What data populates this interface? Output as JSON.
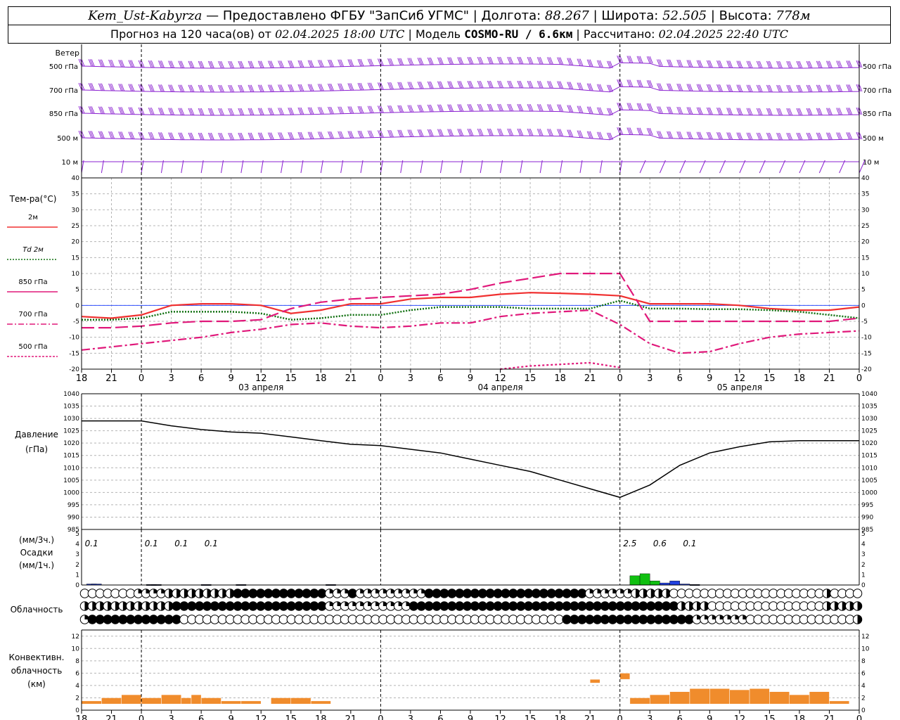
{
  "header": {
    "station": "Kem_Ust-Kabyrza",
    "provider": "— Предоставлено ФГБУ \"ЗапСиб УГМС\"",
    "lon_label": "Долгота:",
    "lon": "88.267",
    "lat_label": "Широта:",
    "lat": "52.505",
    "alt_label": "Высота:",
    "alt": "778м",
    "forecast_label": "Прогноз на 120 часа(ов) от",
    "forecast_time": "02.04.2025 18:00 UTC",
    "model_label": "Модель",
    "model": "COSMO-RU / 6.6км",
    "calc_label": "Рассчитано:",
    "calc_time": "02.04.2025 22:40 UTC"
  },
  "labels": {
    "wind": "Ветер",
    "wind_levels": [
      "500 гПа",
      "700 гПа",
      "850 гПа",
      "500 м",
      "10  м"
    ],
    "temp_title": "Тем-ра(°С)",
    "temp_legend": [
      "2м",
      "Td  2м",
      "850 гПа",
      "700 гПа",
      "500 гПа"
    ],
    "pressure_title": "Давление",
    "pressure_unit": "(гПа)",
    "precip_unit_top": "(мм/3ч.)",
    "precip_title": "Осадки",
    "precip_unit_bottom": "(мм/1ч.)",
    "cloud_title": "Облачность",
    "conv_title_1": "Конвективн.",
    "conv_title_2": "облачность",
    "conv_unit": "(км)"
  },
  "colors": {
    "t2m": "#f03030",
    "td2m": "#107010",
    "t850": "#e0187a",
    "t700": "#e0187a",
    "t500": "#e0187a",
    "wind": "#8a20d0",
    "pressure": "#000000",
    "precip_1h": "#10c010",
    "precip_3h": "#2040e0",
    "convective": "#f08c2c"
  },
  "chart_data": {
    "type": "line",
    "x_hours_utc": [
      18,
      21,
      0,
      3,
      6,
      9,
      12,
      15,
      18,
      21,
      0,
      3,
      6,
      9,
      12,
      15,
      18,
      21,
      0,
      3,
      6,
      9,
      12,
      15,
      18,
      21,
      0
    ],
    "x_tick_labels": [
      "18",
      "21",
      "0",
      "3",
      "6",
      "9",
      "12",
      "15",
      "18",
      "21",
      "0",
      "3",
      "6",
      "9",
      "12",
      "15",
      "18",
      "21",
      "0",
      "3",
      "6",
      "9",
      "12",
      "15",
      "18",
      "21",
      "0"
    ],
    "day_labels": [
      "03 апреля",
      "04 апреля",
      "05 апреля"
    ],
    "temperature": {
      "ylim": [
        -20,
        40
      ],
      "yticks": [
        -20,
        -15,
        -10,
        -5,
        0,
        5,
        10,
        15,
        20,
        25,
        30,
        35,
        40
      ],
      "series": [
        {
          "name": "2м",
          "style": "solid",
          "values": [
            -3.5,
            -4,
            -3,
            0,
            0.5,
            0.5,
            0,
            -2.5,
            -1.5,
            0.5,
            0.5,
            2,
            2.5,
            2.5,
            3.5,
            4,
            3.8,
            3.5,
            3,
            0.5,
            0.5,
            0.5,
            0,
            -1,
            -1.5,
            -1.5,
            -0.5
          ]
        },
        {
          "name": "Td  2м",
          "style": "dotted",
          "values": [
            -4.5,
            -4.5,
            -4,
            -2,
            -2,
            -2,
            -2.5,
            -4.5,
            -4,
            -3,
            -3,
            -1.5,
            -0.5,
            -0.5,
            -0.5,
            -1,
            -1,
            -1,
            1.5,
            -1,
            -1,
            -1.2,
            -1.2,
            -1.5,
            -2,
            -3,
            -4
          ]
        },
        {
          "name": "850 гПа",
          "style": "long-dash",
          "values": [
            -7,
            -7,
            -6.5,
            -5.5,
            -5,
            -5,
            -4.5,
            -1,
            1,
            2,
            2.5,
            3,
            3.5,
            5,
            7,
            8.5,
            10,
            10,
            10,
            -5,
            -5,
            -5,
            -5,
            -5,
            -5,
            -5,
            -4
          ]
        },
        {
          "name": "700 гПа",
          "style": "dash-dot",
          "values": [
            -14,
            -13,
            -12,
            -11,
            -10,
            -8.5,
            -7.5,
            -6,
            -5.5,
            -6.5,
            -7,
            -6.5,
            -5.5,
            -5.5,
            -3.5,
            -2.5,
            -2,
            -1.5,
            -6,
            -12,
            -15,
            -14.5,
            -12,
            -10,
            -9,
            -8.5,
            -8
          ]
        },
        {
          "name": "500 гПа",
          "style": "dotted",
          "values": [
            null,
            null,
            null,
            null,
            null,
            null,
            null,
            null,
            null,
            null,
            null,
            null,
            null,
            null,
            -20,
            -19,
            -18.5,
            -18,
            -19.5,
            null,
            null,
            null,
            null,
            null,
            null,
            null,
            null
          ]
        }
      ]
    },
    "pressure": {
      "ylim": [
        985,
        1040
      ],
      "yticks": [
        985,
        990,
        995,
        1000,
        1005,
        1010,
        1015,
        1020,
        1025,
        1030,
        1035,
        1040
      ],
      "values": [
        1029,
        1029,
        1029,
        1027,
        1025.5,
        1024.5,
        1024,
        1022.5,
        1021,
        1019.5,
        1019,
        1017.5,
        1016,
        1013.5,
        1011,
        1008.5,
        1005,
        1001.5,
        998,
        1003,
        1011,
        1016,
        1018.5,
        1020.5,
        1021,
        1021,
        1021
      ]
    },
    "precipitation": {
      "ylim": [
        0,
        5
      ],
      "yticks": [
        0,
        1,
        2,
        3,
        4,
        5
      ],
      "totals_3h": [
        {
          "hour_index": 0,
          "label": "0.1"
        },
        {
          "hour_index": 2,
          "label": "0.1"
        },
        {
          "hour_index": 3,
          "label": "0.1"
        },
        {
          "hour_index": 4,
          "label": "0.1"
        },
        {
          "hour_index": 18,
          "label": "2.5"
        },
        {
          "hour_index": 19,
          "label": "0.6"
        },
        {
          "hour_index": 20,
          "label": "0.1"
        }
      ],
      "hourly": [
        {
          "t": 0.5,
          "v": 0.1,
          "kind": "3h"
        },
        {
          "t": 1.0,
          "v": 0.1,
          "kind": "3h"
        },
        {
          "t": 6.5,
          "v": 0.05,
          "kind": "3h"
        },
        {
          "t": 7.0,
          "v": 0.05,
          "kind": "3h"
        },
        {
          "t": 12.0,
          "v": 0.05,
          "kind": "3h"
        },
        {
          "t": 15.5,
          "v": 0.05,
          "kind": "3h"
        },
        {
          "t": 24.5,
          "v": 0.05,
          "kind": "3h"
        },
        {
          "t": 55.0,
          "v": 0.9,
          "kind": "1h"
        },
        {
          "t": 56.0,
          "v": 1.1,
          "kind": "1h"
        },
        {
          "t": 57.0,
          "v": 0.4,
          "kind": "1h"
        },
        {
          "t": 58.0,
          "v": 0.2,
          "kind": "3h"
        },
        {
          "t": 59.0,
          "v": 0.4,
          "kind": "3h"
        },
        {
          "t": 60.0,
          "v": 0.1,
          "kind": "3h"
        },
        {
          "t": 61.0,
          "v": 0.05,
          "kind": "3h"
        }
      ]
    },
    "cloudiness_rows": [
      "OOOOOOOQQQQMMMMMMMMMFFFFFFFFFFFFQQQFQQQQQQQQQFFFFFFFFFFFFFFFFFFFFFQQQQQQMMMMMOOOOOOOOOOOOOOOOOOOOMOOOO",
      "MMMMMMMMMMMMFFFFFFFFFFFFFFFFFFFFQQQQQQQQQQQFFFFFFFFFFFFFFFFFFFFFFFFFFFFFFFFFFFMMMMOOOOOOOOOOOOOOOMMMMM",
      "QFFFFFFFFFFFFOOOOOOOOOOOOOOOOOOOOOOOOOOOOOOOOOOOOOOOOOOOOOOOOOOFFFFFFFFFFFFFFFFFQQQQQQQOOOOOOOOOOOOOOM"
    ],
    "convective_cloud_km": {
      "ylim": [
        0,
        13
      ],
      "yticks": [
        0,
        2,
        4,
        6,
        8,
        10,
        12
      ],
      "bars": [
        {
          "t0": 0,
          "t1": 2,
          "top": 1.5
        },
        {
          "t0": 2,
          "t1": 4,
          "top": 2
        },
        {
          "t0": 4,
          "t1": 6,
          "top": 2.5
        },
        {
          "t0": 6,
          "t1": 8,
          "top": 2
        },
        {
          "t0": 8,
          "t1": 10,
          "top": 2.5
        },
        {
          "t0": 10,
          "t1": 11,
          "top": 2
        },
        {
          "t0": 11,
          "t1": 12,
          "top": 2.5
        },
        {
          "t0": 12,
          "t1": 14,
          "top": 2
        },
        {
          "t0": 14,
          "t1": 16,
          "top": 1.5
        },
        {
          "t0": 16,
          "t1": 18,
          "top": 1.5
        },
        {
          "t0": 19,
          "t1": 21,
          "top": 2
        },
        {
          "t0": 21,
          "t1": 23,
          "top": 2
        },
        {
          "t0": 23,
          "t1": 25,
          "top": 1.5
        },
        {
          "t0": 51,
          "t1": 52,
          "top": 5,
          "bottom": 4.4
        },
        {
          "t0": 54,
          "t1": 55,
          "top": 6,
          "bottom": 5
        },
        {
          "t0": 55,
          "t1": 57,
          "top": 2
        },
        {
          "t0": 57,
          "t1": 59,
          "top": 2.5
        },
        {
          "t0": 59,
          "t1": 61,
          "top": 3
        },
        {
          "t0": 61,
          "t1": 63,
          "top": 3.5
        },
        {
          "t0": 63,
          "t1": 65,
          "top": 3.5
        },
        {
          "t0": 65,
          "t1": 67,
          "top": 3.3
        },
        {
          "t0": 67,
          "t1": 69,
          "top": 3.5
        },
        {
          "t0": 69,
          "t1": 71,
          "top": 3
        },
        {
          "t0": 71,
          "t1": 73,
          "top": 2.5
        },
        {
          "t0": 73,
          "t1": 75,
          "top": 3
        },
        {
          "t0": 75,
          "t1": 77,
          "top": 1.5
        }
      ]
    }
  }
}
